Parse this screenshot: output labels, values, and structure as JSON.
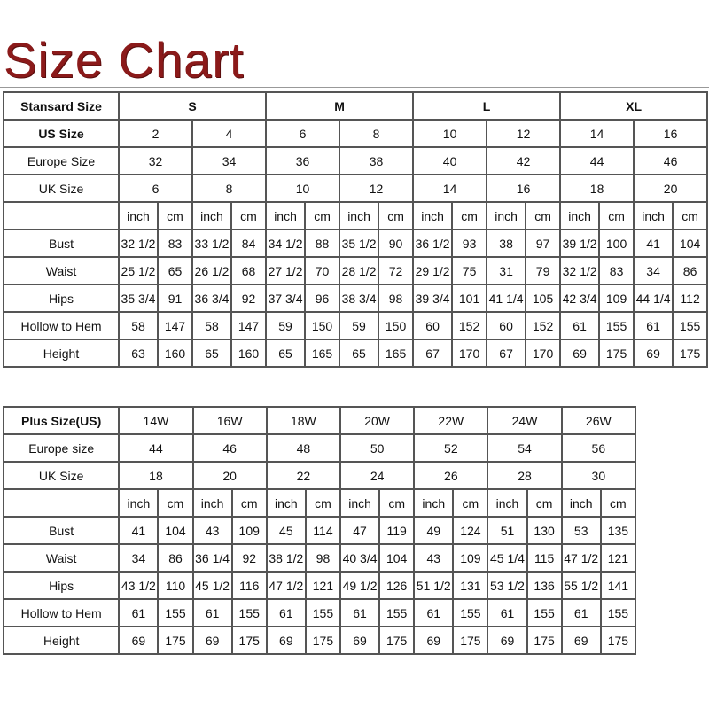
{
  "title": "Size Chart",
  "standard": {
    "header_label": "Stansard Size",
    "groups": [
      "S",
      "M",
      "L",
      "XL"
    ],
    "us_label": "US Size",
    "us": [
      "2",
      "4",
      "6",
      "8",
      "10",
      "12",
      "14",
      "16"
    ],
    "europe_label": "Europe Size",
    "europe": [
      "32",
      "34",
      "36",
      "38",
      "40",
      "42",
      "44",
      "46"
    ],
    "uk_label": "UK Size",
    "uk": [
      "6",
      "8",
      "10",
      "12",
      "14",
      "16",
      "18",
      "20"
    ],
    "unit_inch": "inch",
    "unit_cm": "cm",
    "measurements": [
      {
        "label": "Bust",
        "values": [
          "32 1/2",
          "83",
          "33 1/2",
          "84",
          "34 1/2",
          "88",
          "35 1/2",
          "90",
          "36 1/2",
          "93",
          "38",
          "97",
          "39 1/2",
          "100",
          "41",
          "104"
        ]
      },
      {
        "label": "Waist",
        "values": [
          "25 1/2",
          "65",
          "26 1/2",
          "68",
          "27 1/2",
          "70",
          "28 1/2",
          "72",
          "29 1/2",
          "75",
          "31",
          "79",
          "32 1/2",
          "83",
          "34",
          "86"
        ]
      },
      {
        "label": "Hips",
        "values": [
          "35 3/4",
          "91",
          "36 3/4",
          "92",
          "37 3/4",
          "96",
          "38 3/4",
          "98",
          "39 3/4",
          "101",
          "41 1/4",
          "105",
          "42 3/4",
          "109",
          "44 1/4",
          "112"
        ]
      },
      {
        "label": "Hollow to Hem",
        "values": [
          "58",
          "147",
          "58",
          "147",
          "59",
          "150",
          "59",
          "150",
          "60",
          "152",
          "60",
          "152",
          "61",
          "155",
          "61",
          "155"
        ]
      },
      {
        "label": "Height",
        "values": [
          "63",
          "160",
          "65",
          "160",
          "65",
          "165",
          "65",
          "165",
          "67",
          "170",
          "67",
          "170",
          "69",
          "175",
          "69",
          "175"
        ]
      }
    ]
  },
  "plus": {
    "header_label": "Plus Size(US)",
    "sizes": [
      "14W",
      "16W",
      "18W",
      "20W",
      "22W",
      "24W",
      "26W"
    ],
    "europe_label": "Europe size",
    "europe": [
      "44",
      "46",
      "48",
      "50",
      "52",
      "54",
      "56"
    ],
    "uk_label": "UK Size",
    "uk": [
      "18",
      "20",
      "22",
      "24",
      "26",
      "28",
      "30"
    ],
    "unit_inch": "inch",
    "unit_cm": "cm",
    "measurements": [
      {
        "label": "Bust",
        "values": [
          "41",
          "104",
          "43",
          "109",
          "45",
          "114",
          "47",
          "119",
          "49",
          "124",
          "51",
          "130",
          "53",
          "135"
        ]
      },
      {
        "label": "Waist",
        "values": [
          "34",
          "86",
          "36 1/4",
          "92",
          "38 1/2",
          "98",
          "40 3/4",
          "104",
          "43",
          "109",
          "45 1/4",
          "115",
          "47 1/2",
          "121"
        ]
      },
      {
        "label": "Hips",
        "values": [
          "43 1/2",
          "110",
          "45 1/2",
          "116",
          "47 1/2",
          "121",
          "49 1/2",
          "126",
          "51 1/2",
          "131",
          "53 1/2",
          "136",
          "55 1/2",
          "141"
        ]
      },
      {
        "label": "Hollow to Hem",
        "values": [
          "61",
          "155",
          "61",
          "155",
          "61",
          "155",
          "61",
          "155",
          "61",
          "155",
          "61",
          "155",
          "61",
          "155"
        ]
      },
      {
        "label": "Height",
        "values": [
          "69",
          "175",
          "69",
          "175",
          "69",
          "175",
          "69",
          "175",
          "69",
          "175",
          "69",
          "175",
          "69",
          "175"
        ]
      }
    ]
  },
  "colors": {
    "title": "#8b1a1a",
    "border": "#555555"
  }
}
